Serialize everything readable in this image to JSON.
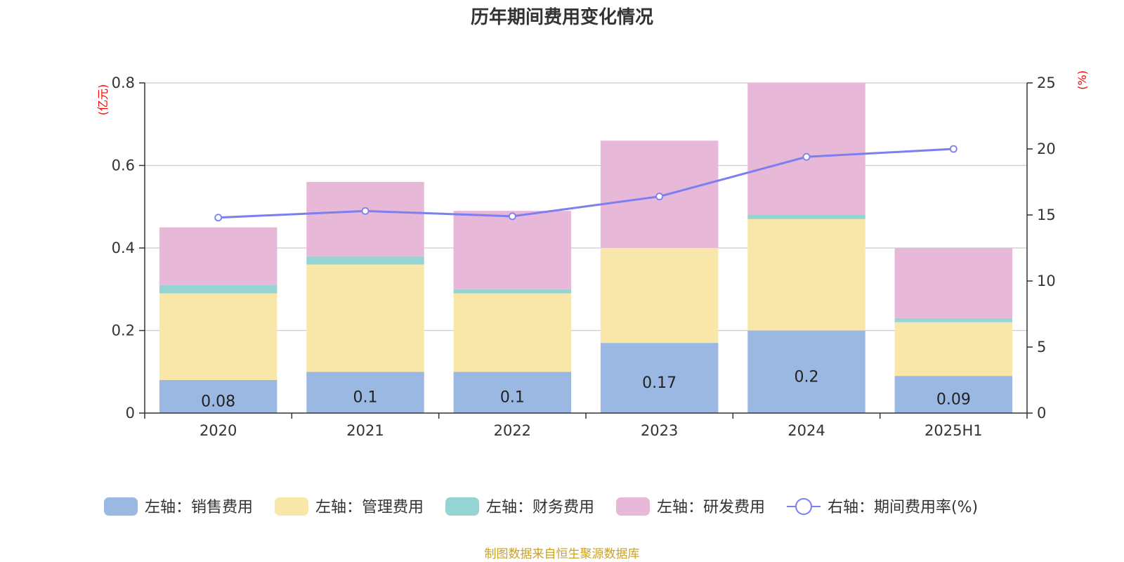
{
  "title": "历年期间费用变化情况",
  "source": "制图数据来自恒生聚源数据库",
  "chart_data": {
    "type": "bar",
    "stacked": true,
    "categories": [
      "2020",
      "2021",
      "2022",
      "2023",
      "2024",
      "2025H1"
    ],
    "left_axis": {
      "unit": "(亿元)",
      "ylim": [
        0,
        0.8
      ],
      "ticks": [
        "0",
        "0.2",
        "0.4",
        "0.6",
        "0.8"
      ]
    },
    "right_axis": {
      "unit": "(%)",
      "ylim": [
        0,
        25
      ],
      "ticks": [
        "0",
        "5",
        "10",
        "15",
        "20",
        "25"
      ]
    },
    "grid": true,
    "legend_position": "bottom",
    "series": [
      {
        "name": "左轴：销售费用",
        "axis": "left",
        "type": "bar",
        "color": "#9bb8e3",
        "values": [
          0.08,
          0.1,
          0.1,
          0.17,
          0.2,
          0.09
        ],
        "labels": [
          "0.08",
          "0.1",
          "0.1",
          "0.17",
          "0.2",
          "0.09"
        ]
      },
      {
        "name": "左轴：管理费用",
        "axis": "left",
        "type": "bar",
        "color": "#f8e7a8",
        "values": [
          0.21,
          0.26,
          0.19,
          0.23,
          0.27,
          0.13
        ]
      },
      {
        "name": "左轴：财务费用",
        "axis": "left",
        "type": "bar",
        "color": "#96d4d4",
        "values": [
          0.02,
          0.02,
          0.01,
          0.0,
          0.01,
          0.01
        ]
      },
      {
        "name": "左轴：研发费用",
        "axis": "left",
        "type": "bar",
        "color": "#e8b8d9",
        "values": [
          0.14,
          0.18,
          0.19,
          0.26,
          0.32,
          0.17
        ]
      },
      {
        "name": "右轴：期间费用率(%)",
        "axis": "right",
        "type": "line",
        "color": "#7b7fef",
        "values": [
          14.8,
          15.3,
          14.9,
          16.4,
          19.4,
          20.0
        ]
      }
    ]
  }
}
